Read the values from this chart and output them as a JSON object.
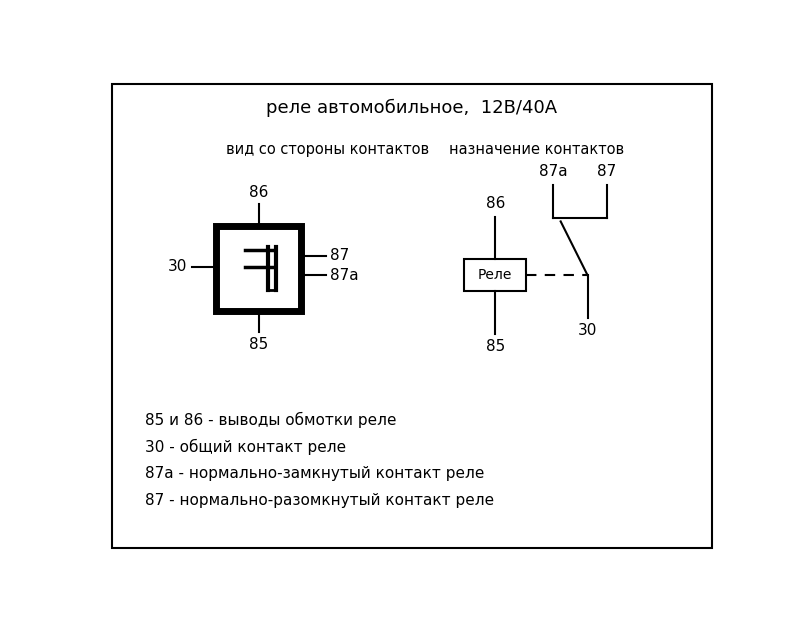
{
  "title": "реле автомобильное,  12В/40А",
  "left_label": "вид со стороны контактов",
  "right_label": "назначение контактов",
  "legend_lines": [
    "85 и 86 - выводы обмотки реле",
    "30 - общий контакт реле",
    "87а - нормально-замкнутый контакт реле",
    "87 - нормально-разомкнутый контакт реле"
  ],
  "bg_color": "#ffffff",
  "border_color": "#000000",
  "text_color": "#000000",
  "title_fontsize": 13,
  "label_fontsize": 10.5,
  "legend_fontsize": 11,
  "pin_fontsize": 11
}
